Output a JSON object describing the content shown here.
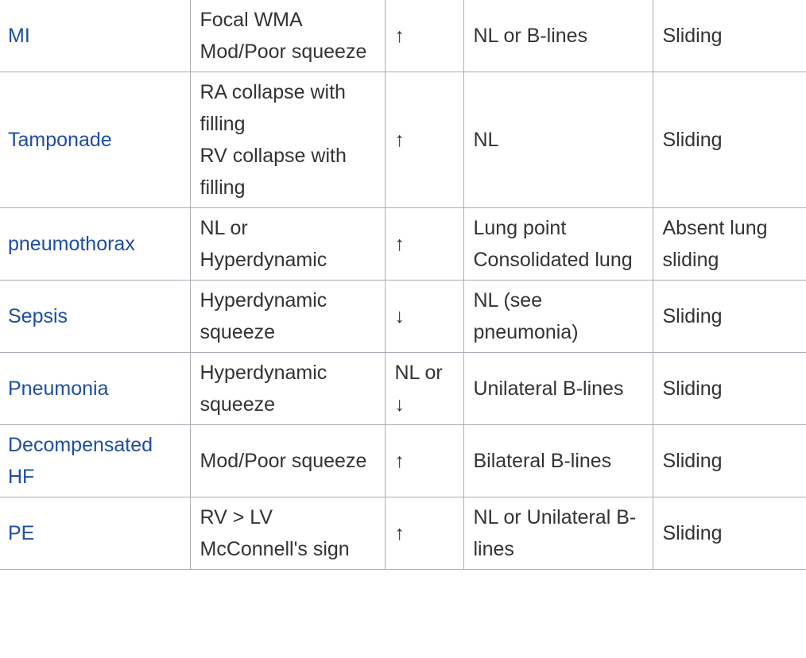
{
  "table": {
    "rows": [
      [
        [
          "MI"
        ],
        [
          "Focal WMA",
          "Mod/Poor squeeze"
        ],
        [
          "↑"
        ],
        [
          "NL or B-lines"
        ],
        [
          "Sliding"
        ]
      ],
      [
        [
          "Tamponade"
        ],
        [
          "RA collapse with filling",
          "RV collapse with filling"
        ],
        [
          "↑"
        ],
        [
          "NL"
        ],
        [
          "Sliding"
        ]
      ],
      [
        [
          "pneumothorax"
        ],
        [
          "NL or Hyperdynamic"
        ],
        [
          "↑"
        ],
        [
          "Lung point",
          "Consolidated lung"
        ],
        [
          "Absent lung sliding"
        ]
      ],
      [
        [
          "Sepsis"
        ],
        [
          "Hyperdynamic squeeze"
        ],
        [
          "↓"
        ],
        [
          "NL (see pneumonia)"
        ],
        [
          "Sliding"
        ]
      ],
      [
        [
          "Pneumonia"
        ],
        [
          "Hyperdynamic squeeze"
        ],
        [
          "NL or ↓"
        ],
        [
          "Unilateral B-lines"
        ],
        [
          "Sliding"
        ]
      ],
      [
        [
          "Decompensated HF"
        ],
        [
          "Mod/Poor squeeze"
        ],
        [
          "↑"
        ],
        [
          "Bilateral B-lines"
        ],
        [
          "Sliding"
        ]
      ],
      [
        [
          "PE"
        ],
        [
          "RV > LV",
          "McConnell's sign"
        ],
        [
          "↑"
        ],
        [
          "NL or Unilateral B-lines"
        ],
        [
          "Sliding"
        ]
      ]
    ]
  }
}
